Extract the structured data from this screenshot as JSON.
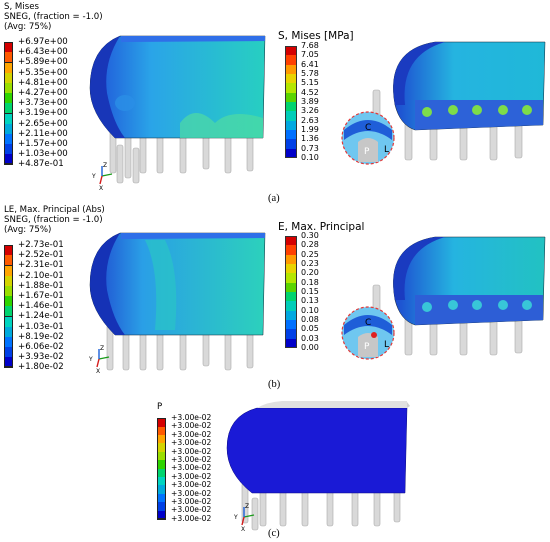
{
  "panel_a": {
    "legend_header": [
      "S, Mises",
      "SNEG, (fraction = -1.0)",
      "(Avg: 75%)"
    ],
    "legend_values": [
      "+6.97e+00",
      "+6.43e+00",
      "+5.89e+00",
      "+5.35e+00",
      "+4.81e+00",
      "+4.27e+00",
      "+3.73e+00",
      "+3.19e+00",
      "+2.65e+00",
      "+2.11e+00",
      "+1.57e+00",
      "+1.03e+00",
      "+4.87e-01"
    ],
    "colorbar_title": "S, Mises [MPa]",
    "colorbar_values": [
      "7.68",
      "7.05",
      "6.41",
      "5.78",
      "5.15",
      "4.52",
      "3.89",
      "3.26",
      "2.63",
      "1.99",
      "1.36",
      "0.73",
      "0.10"
    ],
    "inset_labels": {
      "c": "C",
      "p": "P",
      "l": "L"
    },
    "label": "(a)"
  },
  "panel_b": {
    "legend_header": [
      "LE, Max. Principal (Abs)",
      "SNEG, (fraction = -1.0)",
      "(Avg: 75%)"
    ],
    "legend_values": [
      "+2.73e-01",
      "+2.52e-01",
      "+2.31e-01",
      "+2.10e-01",
      "+1.88e-01",
      "+1.67e-01",
      "+1.46e-01",
      "+1.24e-01",
      "+1.03e-01",
      "+8.19e-02",
      "+6.06e-02",
      "+3.93e-02",
      "+1.80e-02"
    ],
    "colorbar_title": "E, Max. Principal",
    "colorbar_values": [
      "0.30",
      "0.28",
      "0.25",
      "0.23",
      "0.20",
      "0.18",
      "0.15",
      "0.13",
      "0.10",
      "0.08",
      "0.05",
      "0.03",
      "0.00"
    ],
    "inset_labels": {
      "c": "C",
      "p": "P",
      "l": "L"
    },
    "label": "(b)"
  },
  "panel_c": {
    "legend_header": [
      "P"
    ],
    "legend_values": [
      "+3.00e-02",
      "+3.00e-02",
      "+3.00e-02",
      "+3.00e-02",
      "+3.00e-02",
      "+3.00e-02",
      "+3.00e-02",
      "+3.00e-02",
      "+3.00e-02",
      "+3.00e-02",
      "+3.00e-02",
      "+3.00e-02",
      "+3.00e-02"
    ],
    "label": "(c)"
  },
  "triad": {
    "x": "X",
    "y": "Y",
    "z": "Z"
  },
  "colors": {
    "scale": [
      "#d40000",
      "#ff5a00",
      "#ffa500",
      "#d4d400",
      "#9ade00",
      "#2ed400",
      "#00d46e",
      "#00d4c0",
      "#00aadc",
      "#0073ff",
      "#0040e6",
      "#0000c8"
    ]
  }
}
